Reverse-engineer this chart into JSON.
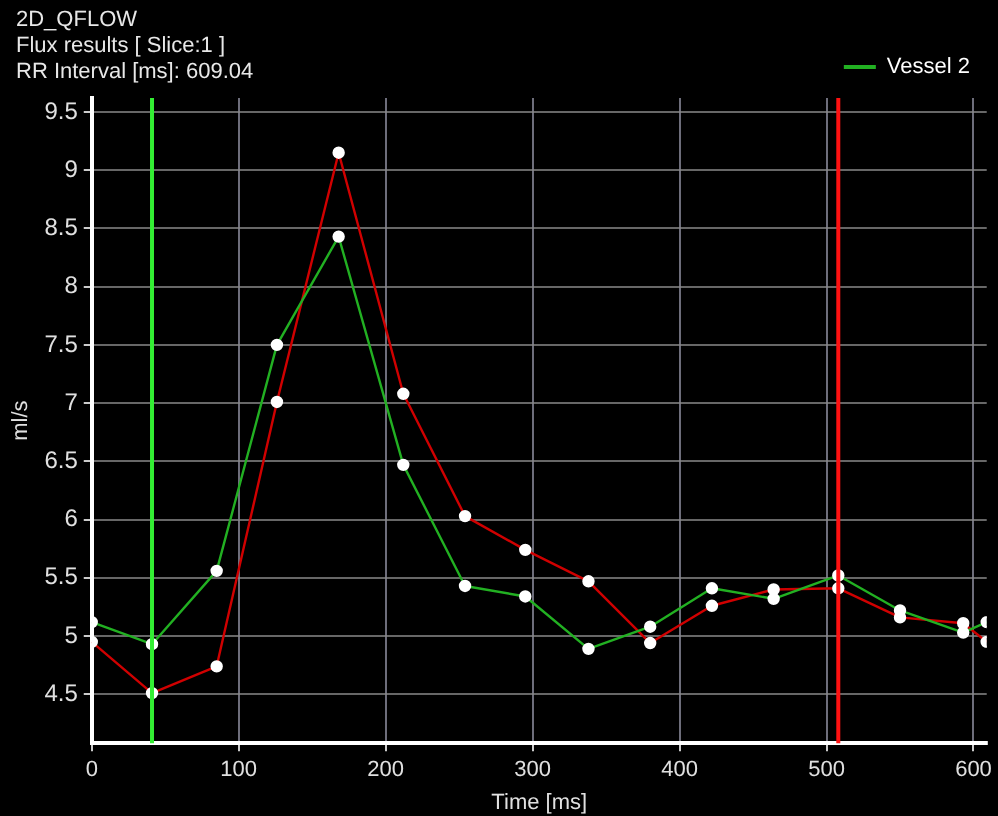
{
  "chart_data": {
    "type": "line",
    "title": "2D_QFLOW",
    "subtitle": "Flux results [ Slice:1 ]",
    "annotations": [
      "RR Interval [ms]: 609.04"
    ],
    "xlabel": "Time [ms]",
    "ylabel": "ml/s",
    "x": [
      0,
      41,
      85,
      126,
      168,
      212,
      254,
      295,
      338,
      380,
      422,
      464,
      508,
      550,
      593,
      609
    ],
    "series": [
      {
        "name": "Vessel 2",
        "color": "#22b022",
        "values": [
          5.12,
          4.93,
          5.56,
          7.5,
          8.43,
          6.47,
          5.43,
          5.34,
          4.89,
          5.08,
          5.41,
          5.32,
          5.52,
          5.22,
          5.03,
          5.12
        ]
      },
      {
        "color": "#d00000",
        "values": [
          4.95,
          4.51,
          4.74,
          7.01,
          9.15,
          7.08,
          6.03,
          5.74,
          5.47,
          4.94,
          5.26,
          5.4,
          5.41,
          5.16,
          5.11,
          4.95
        ]
      }
    ],
    "xlim": [
      0,
      609
    ],
    "xticks": [
      0,
      100,
      200,
      300,
      400,
      500,
      600
    ],
    "ylim": [
      4.08,
      9.62
    ],
    "yticks": [
      4.5,
      5,
      5.5,
      6,
      6.5,
      7,
      7.5,
      8,
      8.5,
      9,
      9.5
    ],
    "ref_lines": [
      {
        "axis": "x",
        "value": 41,
        "color": "#33ee33"
      },
      {
        "axis": "x",
        "value": 508,
        "color": "#ff1111"
      }
    ],
    "grid": true,
    "legend": "top right",
    "marker": "circle",
    "line_style": "solid"
  }
}
